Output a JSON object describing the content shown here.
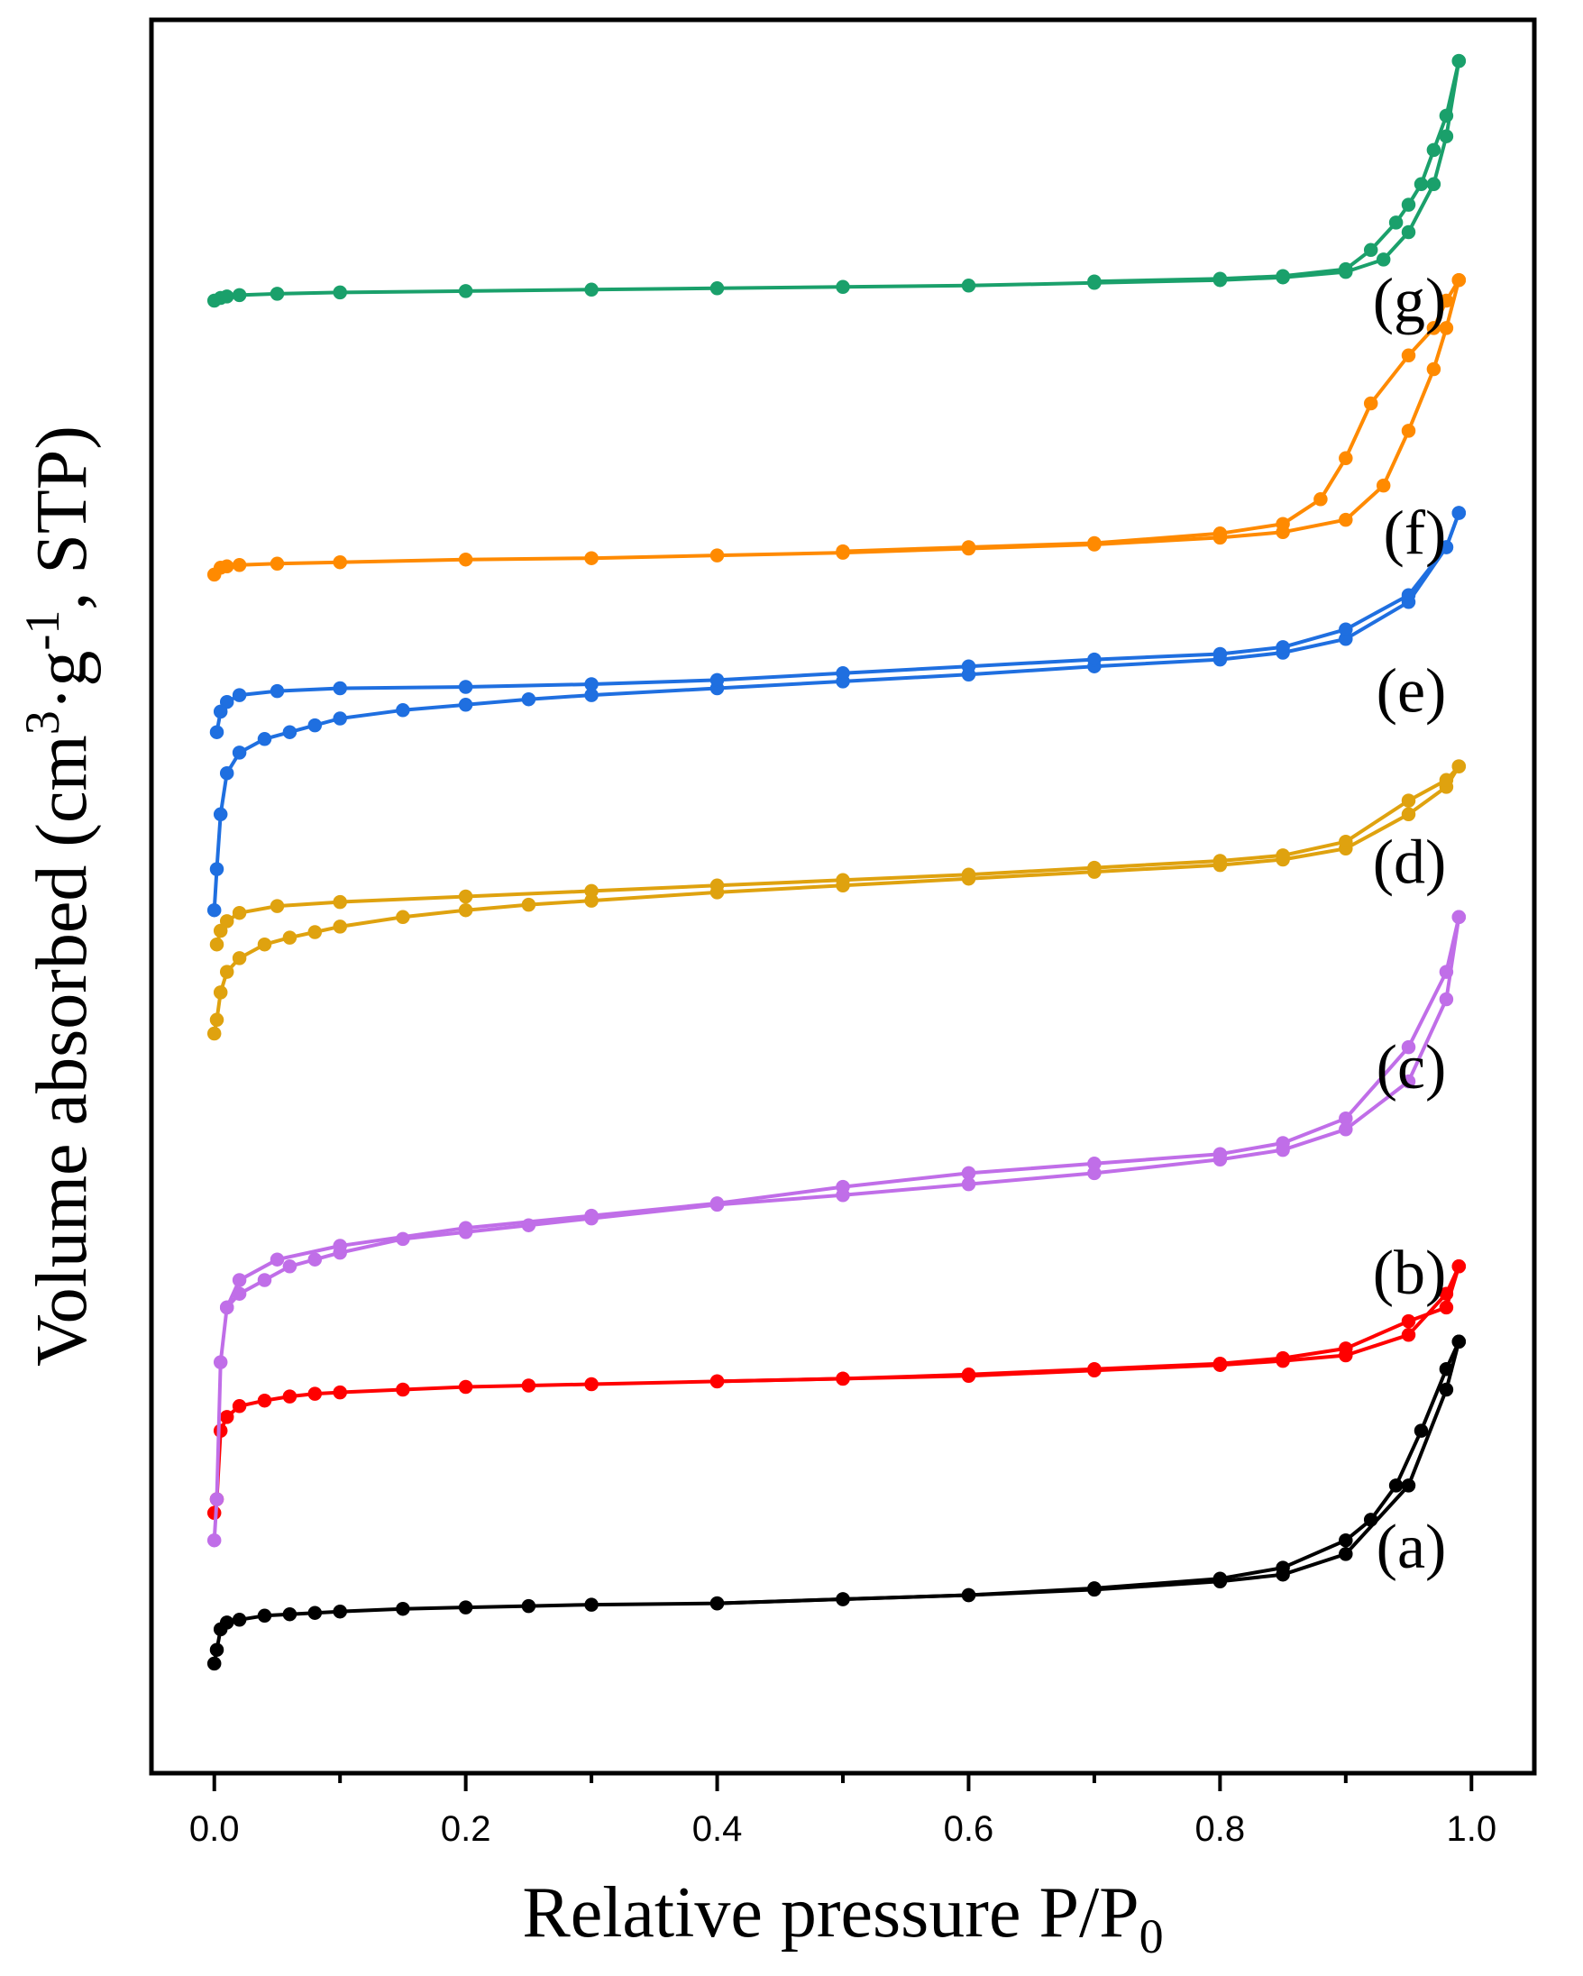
{
  "chart_data": {
    "type": "line",
    "title": "",
    "xlabel": "Relative pressure P/P",
    "xlabel_sub": "0",
    "ylabel_parts": {
      "prefix": "Volume absorbed (cm",
      "sup1": "3",
      "mid": "·g",
      "sup2": "-1",
      "suffix": ", STP)"
    },
    "xlim": [
      -0.05,
      1.05
    ],
    "ylim": [
      -1.0,
      11.8
    ],
    "x_ticks": [
      "0.0",
      "0.2",
      "0.4",
      "0.6",
      "0.8",
      "1.0"
    ],
    "y_ticks_labeled": false,
    "grid": false,
    "marker": "circle",
    "series": [
      {
        "name": "(a)",
        "label_at": [
          0.98,
          0.5
        ],
        "color": "#000000",
        "adsorption": [
          [
            0,
            -0.2
          ],
          [
            0.002,
            -0.1
          ],
          [
            0.005,
            0.05
          ],
          [
            0.01,
            0.1
          ],
          [
            0.02,
            0.12
          ],
          [
            0.04,
            0.15
          ],
          [
            0.06,
            0.16
          ],
          [
            0.08,
            0.17
          ],
          [
            0.1,
            0.18
          ],
          [
            0.15,
            0.2
          ],
          [
            0.2,
            0.21
          ],
          [
            0.25,
            0.22
          ],
          [
            0.3,
            0.23
          ],
          [
            0.4,
            0.24
          ],
          [
            0.5,
            0.27
          ],
          [
            0.6,
            0.3
          ],
          [
            0.7,
            0.34
          ],
          [
            0.8,
            0.4
          ],
          [
            0.85,
            0.45
          ],
          [
            0.9,
            0.6
          ],
          [
            0.95,
            1.1
          ],
          [
            0.98,
            1.8
          ],
          [
            0.99,
            2.15
          ]
        ],
        "desorption": [
          [
            0.99,
            2.15
          ],
          [
            0.98,
            1.95
          ],
          [
            0.96,
            1.5
          ],
          [
            0.94,
            1.1
          ],
          [
            0.92,
            0.85
          ],
          [
            0.9,
            0.7
          ],
          [
            0.85,
            0.5
          ],
          [
            0.8,
            0.42
          ],
          [
            0.7,
            0.35
          ],
          [
            0.6,
            0.3
          ],
          [
            0.5,
            0.27
          ],
          [
            0.4,
            0.24
          ]
        ]
      },
      {
        "name": "(b)",
        "label_at": [
          0.98,
          2.5
        ],
        "color": "#ff0000",
        "adsorption": [
          [
            0,
            0.9
          ],
          [
            0.002,
            1.0
          ],
          [
            0.005,
            1.5
          ],
          [
            0.01,
            1.6
          ],
          [
            0.02,
            1.68
          ],
          [
            0.04,
            1.72
          ],
          [
            0.06,
            1.75
          ],
          [
            0.08,
            1.77
          ],
          [
            0.1,
            1.78
          ],
          [
            0.15,
            1.8
          ],
          [
            0.2,
            1.82
          ],
          [
            0.25,
            1.83
          ],
          [
            0.3,
            1.84
          ],
          [
            0.4,
            1.86
          ],
          [
            0.5,
            1.88
          ],
          [
            0.6,
            1.9
          ],
          [
            0.7,
            1.94
          ],
          [
            0.8,
            1.98
          ],
          [
            0.85,
            2.01
          ],
          [
            0.9,
            2.05
          ],
          [
            0.95,
            2.2
          ],
          [
            0.98,
            2.5
          ],
          [
            0.99,
            2.7
          ]
        ],
        "desorption": [
          [
            0.99,
            2.7
          ],
          [
            0.98,
            2.4
          ],
          [
            0.95,
            2.3
          ],
          [
            0.9,
            2.1
          ],
          [
            0.85,
            2.03
          ],
          [
            0.8,
            1.99
          ],
          [
            0.7,
            1.95
          ],
          [
            0.6,
            1.91
          ],
          [
            0.5,
            1.88
          ],
          [
            0.4,
            1.86
          ]
        ]
      },
      {
        "name": "(c)",
        "label_at": [
          0.98,
          4.0
        ],
        "color": "#c06ee8",
        "adsorption": [
          [
            0,
            0.7
          ],
          [
            0.002,
            1.0
          ],
          [
            0.005,
            2.0
          ],
          [
            0.01,
            2.4
          ],
          [
            0.02,
            2.5
          ],
          [
            0.04,
            2.6
          ],
          [
            0.06,
            2.7
          ],
          [
            0.08,
            2.75
          ],
          [
            0.1,
            2.8
          ],
          [
            0.15,
            2.9
          ],
          [
            0.2,
            2.95
          ],
          [
            0.25,
            3.0
          ],
          [
            0.3,
            3.05
          ],
          [
            0.4,
            3.15
          ],
          [
            0.5,
            3.22
          ],
          [
            0.6,
            3.3
          ],
          [
            0.7,
            3.38
          ],
          [
            0.8,
            3.48
          ],
          [
            0.85,
            3.55
          ],
          [
            0.9,
            3.7
          ],
          [
            0.95,
            4.05
          ],
          [
            0.98,
            4.65
          ],
          [
            0.99,
            5.25
          ]
        ],
        "desorption": [
          [
            0.99,
            5.25
          ],
          [
            0.98,
            4.85
          ],
          [
            0.95,
            4.3
          ],
          [
            0.9,
            3.78
          ],
          [
            0.85,
            3.6
          ],
          [
            0.8,
            3.52
          ],
          [
            0.7,
            3.45
          ],
          [
            0.6,
            3.38
          ],
          [
            0.5,
            3.28
          ],
          [
            0.4,
            3.16
          ],
          [
            0.3,
            3.07
          ],
          [
            0.2,
            2.98
          ],
          [
            0.1,
            2.85
          ],
          [
            0.05,
            2.75
          ],
          [
            0.02,
            2.6
          ],
          [
            0.01,
            2.4
          ]
        ]
      },
      {
        "name": "(d)",
        "label_at": [
          0.98,
          5.5
        ],
        "color": "#dfa20f",
        "adsorption": [
          [
            0,
            4.4
          ],
          [
            0.002,
            4.5
          ],
          [
            0.005,
            4.7
          ],
          [
            0.01,
            4.85
          ],
          [
            0.02,
            4.95
          ],
          [
            0.04,
            5.05
          ],
          [
            0.06,
            5.1
          ],
          [
            0.08,
            5.14
          ],
          [
            0.1,
            5.18
          ],
          [
            0.15,
            5.25
          ],
          [
            0.2,
            5.3
          ],
          [
            0.25,
            5.34
          ],
          [
            0.3,
            5.37
          ],
          [
            0.4,
            5.43
          ],
          [
            0.5,
            5.48
          ],
          [
            0.6,
            5.53
          ],
          [
            0.7,
            5.58
          ],
          [
            0.8,
            5.63
          ],
          [
            0.85,
            5.67
          ],
          [
            0.9,
            5.75
          ],
          [
            0.95,
            6.0
          ],
          [
            0.98,
            6.2
          ],
          [
            0.99,
            6.35
          ]
        ],
        "desorption": [
          [
            0.99,
            6.35
          ],
          [
            0.98,
            6.25
          ],
          [
            0.95,
            6.1
          ],
          [
            0.9,
            5.8
          ],
          [
            0.85,
            5.7
          ],
          [
            0.8,
            5.66
          ],
          [
            0.7,
            5.61
          ],
          [
            0.6,
            5.56
          ],
          [
            0.5,
            5.52
          ],
          [
            0.4,
            5.48
          ],
          [
            0.3,
            5.44
          ],
          [
            0.2,
            5.4
          ],
          [
            0.1,
            5.36
          ],
          [
            0.05,
            5.33
          ],
          [
            0.02,
            5.28
          ],
          [
            0.01,
            5.22
          ],
          [
            0.005,
            5.15
          ],
          [
            0.002,
            5.05
          ]
        ]
      },
      {
        "name": "(e)",
        "label_at": [
          0.98,
          6.75
        ],
        "color": "#1f6fe0",
        "adsorption": [
          [
            0,
            5.3
          ],
          [
            0.002,
            5.6
          ],
          [
            0.005,
            6.0
          ],
          [
            0.01,
            6.3
          ],
          [
            0.02,
            6.45
          ],
          [
            0.04,
            6.55
          ],
          [
            0.06,
            6.6
          ],
          [
            0.08,
            6.65
          ],
          [
            0.1,
            6.7
          ],
          [
            0.15,
            6.76
          ],
          [
            0.2,
            6.8
          ],
          [
            0.25,
            6.84
          ],
          [
            0.3,
            6.87
          ],
          [
            0.4,
            6.92
          ],
          [
            0.5,
            6.97
          ],
          [
            0.6,
            7.02
          ],
          [
            0.7,
            7.08
          ],
          [
            0.8,
            7.13
          ],
          [
            0.85,
            7.18
          ],
          [
            0.9,
            7.28
          ],
          [
            0.95,
            7.55
          ],
          [
            0.98,
            7.95
          ],
          [
            0.99,
            8.2
          ]
        ],
        "desorption": [
          [
            0.99,
            8.2
          ],
          [
            0.98,
            7.95
          ],
          [
            0.95,
            7.6
          ],
          [
            0.9,
            7.35
          ],
          [
            0.85,
            7.22
          ],
          [
            0.8,
            7.17
          ],
          [
            0.7,
            7.13
          ],
          [
            0.6,
            7.08
          ],
          [
            0.5,
            7.03
          ],
          [
            0.4,
            6.98
          ],
          [
            0.3,
            6.95
          ],
          [
            0.2,
            6.93
          ],
          [
            0.1,
            6.92
          ],
          [
            0.05,
            6.9
          ],
          [
            0.02,
            6.87
          ],
          [
            0.01,
            6.82
          ],
          [
            0.005,
            6.75
          ],
          [
            0.002,
            6.6
          ]
        ]
      },
      {
        "name": "(f)",
        "label_at": [
          0.98,
          7.9
        ],
        "color": "#ff8a00",
        "adsorption": [
          [
            0,
            7.75
          ],
          [
            0.005,
            7.8
          ],
          [
            0.01,
            7.81
          ],
          [
            0.02,
            7.82
          ],
          [
            0.05,
            7.83
          ],
          [
            0.1,
            7.84
          ],
          [
            0.2,
            7.86
          ],
          [
            0.3,
            7.87
          ],
          [
            0.4,
            7.89
          ],
          [
            0.5,
            7.91
          ],
          [
            0.6,
            7.94
          ],
          [
            0.7,
            7.97
          ],
          [
            0.8,
            8.02
          ],
          [
            0.85,
            8.06
          ],
          [
            0.9,
            8.15
          ],
          [
            0.93,
            8.4
          ],
          [
            0.95,
            8.8
          ],
          [
            0.97,
            9.25
          ],
          [
            0.98,
            9.55
          ],
          [
            0.99,
            9.9
          ]
        ],
        "desorption": [
          [
            0.99,
            9.9
          ],
          [
            0.98,
            9.75
          ],
          [
            0.97,
            9.55
          ],
          [
            0.95,
            9.35
          ],
          [
            0.92,
            9.0
          ],
          [
            0.9,
            8.6
          ],
          [
            0.88,
            8.3
          ],
          [
            0.85,
            8.12
          ],
          [
            0.8,
            8.05
          ],
          [
            0.7,
            7.98
          ],
          [
            0.6,
            7.95
          ],
          [
            0.5,
            7.92
          ]
        ]
      },
      {
        "name": "(g)",
        "label_at": [
          0.98,
          9.6
        ],
        "color": "#1aa06b",
        "adsorption": [
          [
            0,
            9.75
          ],
          [
            0.005,
            9.77
          ],
          [
            0.01,
            9.78
          ],
          [
            0.02,
            9.79
          ],
          [
            0.05,
            9.8
          ],
          [
            0.1,
            9.81
          ],
          [
            0.2,
            9.82
          ],
          [
            0.3,
            9.83
          ],
          [
            0.4,
            9.84
          ],
          [
            0.5,
            9.85
          ],
          [
            0.6,
            9.86
          ],
          [
            0.7,
            9.88
          ],
          [
            0.8,
            9.9
          ],
          [
            0.85,
            9.92
          ],
          [
            0.9,
            9.96
          ],
          [
            0.93,
            10.05
          ],
          [
            0.95,
            10.25
          ],
          [
            0.97,
            10.6
          ],
          [
            0.98,
            10.95
          ],
          [
            0.99,
            11.5
          ]
        ],
        "desorption": [
          [
            0.99,
            11.5
          ],
          [
            0.98,
            11.1
          ],
          [
            0.97,
            10.85
          ],
          [
            0.96,
            10.6
          ],
          [
            0.95,
            10.45
          ],
          [
            0.94,
            10.32
          ],
          [
            0.92,
            10.12
          ],
          [
            0.9,
            9.98
          ],
          [
            0.85,
            9.93
          ],
          [
            0.8,
            9.91
          ],
          [
            0.7,
            9.89
          ]
        ]
      }
    ]
  }
}
